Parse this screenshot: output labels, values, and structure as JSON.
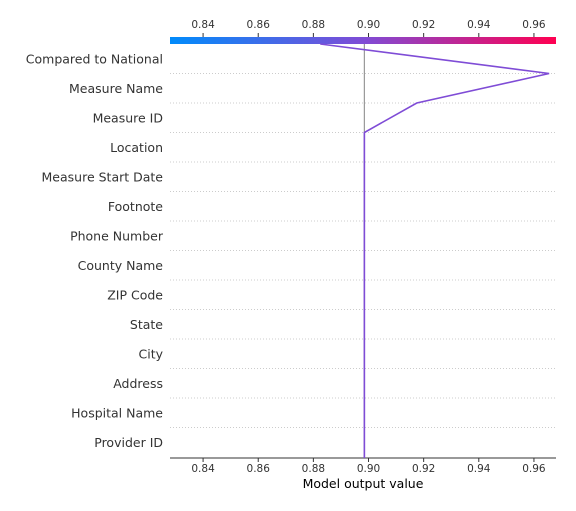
{
  "chart_data": {
    "type": "line",
    "xlabel": "Model output value",
    "xlim": [
      0.828,
      0.968
    ],
    "base_value": 0.8985,
    "xticks": [
      0.84,
      0.86,
      0.88,
      0.9,
      0.92,
      0.94,
      0.96
    ],
    "xtick_labels": [
      "0.84",
      "0.86",
      "0.88",
      "0.90",
      "0.92",
      "0.94",
      "0.96"
    ],
    "features": [
      "Compared to National",
      "Measure Name",
      "Measure ID",
      "Location",
      "Measure Start Date",
      "Footnote",
      "Phone Number",
      "County Name",
      "ZIP Code",
      "State",
      "City",
      "Address",
      "Hospital Name",
      "Provider ID"
    ],
    "path_values": [
      0.8985,
      0.8985,
      0.8985,
      0.8985,
      0.8985,
      0.8985,
      0.8985,
      0.8985,
      0.8985,
      0.8985,
      0.8985,
      0.8985,
      0.8985,
      0.9175,
      0.9655,
      0.8825
    ],
    "colors": {
      "low": "#008bfb",
      "mid": "#7f4cd6",
      "high": "#ff0051",
      "line": "#7f4cd6",
      "baseline": "#999999",
      "grid": "#cccccc",
      "text": "#333333"
    }
  }
}
